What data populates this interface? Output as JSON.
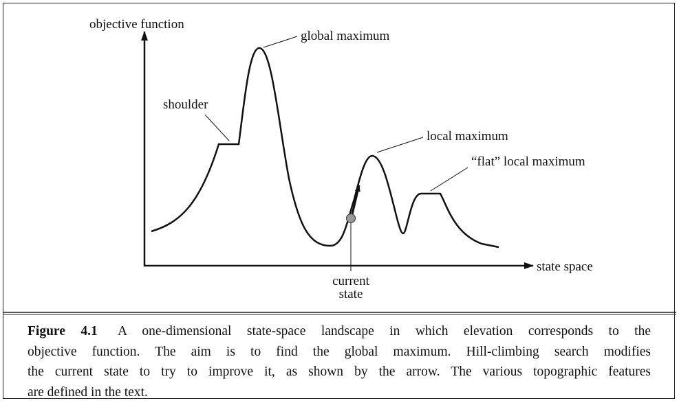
{
  "diagram": {
    "y_axis_label": "objective function",
    "x_axis_label": "state space",
    "labels": {
      "global": "global maximum",
      "shoulder": "shoulder",
      "local": "local maximum",
      "flat": "“flat” local maximum",
      "current_1": "current",
      "current_2": "state"
    }
  },
  "caption": {
    "label": "Figure 4.1",
    "lines": [
      "A one-dimensional state-space landscape in which elevation corresponds to the",
      "objective function. The aim is to find the global maximum. Hill-climbing search modifies",
      "the current state to try to improve it, as shown by the arrow. The various topographic features",
      "are defined in the text."
    ]
  }
}
